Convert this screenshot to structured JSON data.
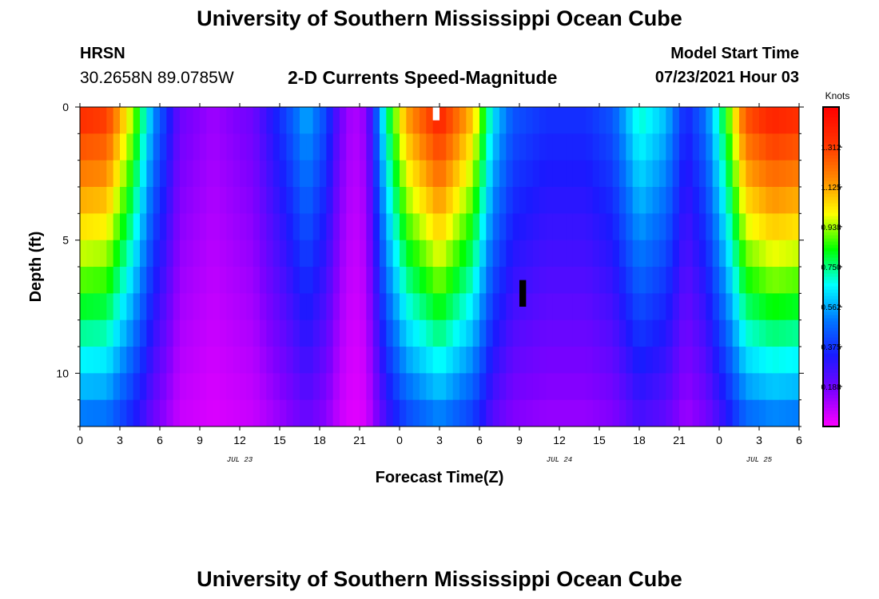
{
  "page": {
    "title_top": "University of Southern Mississippi Ocean Cube",
    "title_bottom": "University of Southern Mississippi Ocean Cube",
    "station": "HRSN",
    "coords": "30.2658N  89.0785W",
    "model_start_label": "Model Start Time",
    "model_start_value": "07/23/2021 Hour 03"
  },
  "colors": {
    "colormap": [
      "#ff00ff",
      "#7f00ff",
      "#1a1aff",
      "#0077ff",
      "#00ffff",
      "#00ff00",
      "#ffff00",
      "#ff8800",
      "#ff3300",
      "#ff0000"
    ],
    "missing_white": "#ffffff",
    "missing_black": "#000000"
  },
  "chart_data": {
    "type": "heatmap",
    "title": "2-D Currents Speed-Magnitude",
    "xlabel": "Forecast Time(Z)",
    "ylabel": "Depth (ft)",
    "colorbar_label": "Knots",
    "x_range_hours": [
      0,
      54
    ],
    "y_range_ft": [
      0,
      12
    ],
    "x_tick_hours": [
      0,
      3,
      6,
      9,
      12,
      15,
      18,
      21,
      24,
      27,
      30,
      33,
      36,
      39,
      42,
      45,
      48,
      51,
      54
    ],
    "x_tick_labels": [
      "0",
      "3",
      "6",
      "9",
      "12",
      "15",
      "18",
      "21",
      "0",
      "3",
      "6",
      "9",
      "12",
      "15",
      "18",
      "21",
      "0",
      "3",
      "6"
    ],
    "date_labels": [
      {
        "hour": 12,
        "label": "JUL 23"
      },
      {
        "hour": 36,
        "label": "JUL 24"
      },
      {
        "hour": 51,
        "label": "JUL 25"
      }
    ],
    "y_ticks": [
      0,
      5,
      10
    ],
    "y_tick_labels": [
      "0",
      "5",
      "10"
    ],
    "colorbar_range": [
      0,
      1.5
    ],
    "colorbar_ticks": [
      0.188,
      0.375,
      0.562,
      0.75,
      0.938,
      1.125,
      1.312
    ],
    "colorbar_tick_labels": [
      "0.188",
      "0.375",
      "0.562",
      "0.750",
      "0.938",
      "1.125",
      "1.312"
    ],
    "time_step_hours": 0.5,
    "depth_levels_ft": [
      0.5,
      1.5,
      2.5,
      3.5,
      4.5,
      5.5,
      6.5,
      7.5,
      8.5,
      9.5,
      10.5,
      11.5
    ],
    "surface_speed_profile": [
      {
        "hour": 0,
        "knots": 1.38
      },
      {
        "hour": 2,
        "knots": 1.35
      },
      {
        "hour": 4,
        "knots": 0.95
      },
      {
        "hour": 5.5,
        "knots": 0.55
      },
      {
        "hour": 7.5,
        "knots": 0.2
      },
      {
        "hour": 10,
        "knots": 0.13
      },
      {
        "hour": 13,
        "knots": 0.2
      },
      {
        "hour": 15.5,
        "knots": 0.42
      },
      {
        "hour": 17,
        "knots": 0.58
      },
      {
        "hour": 18.5,
        "knots": 0.42
      },
      {
        "hour": 19.5,
        "knots": 0.2
      },
      {
        "hour": 20.5,
        "knots": 0.1
      },
      {
        "hour": 21.5,
        "knots": 0.15
      },
      {
        "hour": 23,
        "knots": 0.75
      },
      {
        "hour": 24.5,
        "knots": 1.15
      },
      {
        "hour": 27,
        "knots": 1.42
      },
      {
        "hour": 29.5,
        "knots": 1.1
      },
      {
        "hour": 31,
        "knots": 0.65
      },
      {
        "hour": 32.5,
        "knots": 0.45
      },
      {
        "hour": 35,
        "knots": 0.38
      },
      {
        "hour": 38,
        "knots": 0.38
      },
      {
        "hour": 40,
        "knots": 0.45
      },
      {
        "hour": 42,
        "knots": 0.72
      },
      {
        "hour": 44,
        "knots": 0.6
      },
      {
        "hour": 45.5,
        "knots": 0.35
      },
      {
        "hour": 47,
        "knots": 0.5
      },
      {
        "hour": 48.5,
        "knots": 0.85
      },
      {
        "hour": 50,
        "knots": 1.3
      },
      {
        "hour": 52,
        "knots": 1.42
      },
      {
        "hour": 54,
        "knots": 1.38
      }
    ],
    "depth_decay_coefficient": 0.055,
    "missing_cells": [
      {
        "hour_start": 26.5,
        "hour_end": 27.0,
        "depth_start": 0,
        "depth_end": 0.5,
        "color": "white"
      },
      {
        "hour_start": 33.0,
        "hour_end": 33.5,
        "depth_start": 6.5,
        "depth_end": 7.5,
        "color": "black"
      }
    ]
  }
}
